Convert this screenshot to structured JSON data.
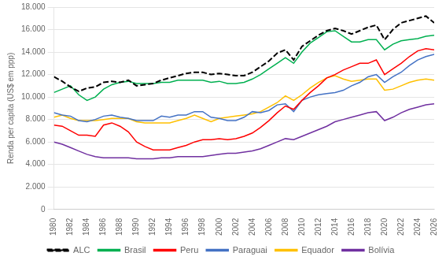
{
  "chart_data": {
    "type": "line",
    "y_label": "Renda per capita (US$ em ppp)",
    "x": [
      1980,
      1981,
      1982,
      1983,
      1984,
      1985,
      1986,
      1987,
      1988,
      1989,
      1990,
      1991,
      1992,
      1993,
      1994,
      1995,
      1996,
      1997,
      1998,
      1999,
      2000,
      2001,
      2002,
      2003,
      2004,
      2005,
      2006,
      2007,
      2008,
      2009,
      2010,
      2011,
      2012,
      2013,
      2014,
      2015,
      2016,
      2017,
      2018,
      2019,
      2020,
      2021,
      2022,
      2023,
      2024,
      2025,
      2026
    ],
    "xlim": [
      1980,
      2026
    ],
    "xticks": [
      1980,
      1982,
      1984,
      1986,
      1988,
      1990,
      1992,
      1994,
      1996,
      1998,
      2000,
      2002,
      2004,
      2006,
      2008,
      2010,
      2012,
      2014,
      2016,
      2018,
      2020,
      2022,
      2024,
      2026
    ],
    "ylim": [
      0,
      18000
    ],
    "yticks": [
      0,
      {
        "value": 2000,
        "label": "2.000"
      },
      {
        "value": 4000,
        "label": "4.000"
      },
      {
        "value": 6000,
        "label": "6.000"
      },
      {
        "value": 8000,
        "label": "8.000"
      },
      {
        "value": 10000,
        "label": "10.000"
      },
      {
        "value": 12000,
        "label": "12.000"
      },
      {
        "value": 14000,
        "label": "14.000"
      },
      {
        "value": 16000,
        "label": "16.000"
      },
      {
        "value": 18000,
        "label": "18.000"
      }
    ],
    "grid": "y",
    "legend": "bottom",
    "series": [
      {
        "name": "ALC",
        "color": "#000000",
        "line_style": "dashed",
        "values": [
          11800,
          11400,
          10900,
          10500,
          10800,
          10900,
          11300,
          11400,
          11300,
          11500,
          11000,
          11100,
          11200,
          11500,
          11700,
          11900,
          12100,
          12200,
          12200,
          12000,
          12100,
          12000,
          11900,
          11900,
          12200,
          12700,
          13200,
          13900,
          14200,
          13300,
          14500,
          15000,
          15500,
          15900,
          16100,
          15900,
          15600,
          15900,
          16200,
          16400,
          15100,
          16000,
          16600,
          16800,
          17000,
          17200,
          16600
        ]
      },
      {
        "name": "Brasil",
        "color": "#00b050",
        "line_style": "solid",
        "values": [
          10400,
          10700,
          11000,
          10200,
          9700,
          10000,
          10700,
          11100,
          11300,
          11400,
          11200,
          11200,
          11200,
          11300,
          11300,
          11500,
          11500,
          11500,
          11500,
          11300,
          11400,
          11200,
          11200,
          11300,
          11600,
          12000,
          12500,
          13000,
          13500,
          13000,
          14000,
          14800,
          15300,
          15800,
          15900,
          15400,
          14900,
          14900,
          15100,
          15100,
          14200,
          14700,
          15000,
          15100,
          15200,
          15400,
          15500
        ]
      },
      {
        "name": "Peru",
        "color": "#ff0000",
        "line_style": "solid",
        "values": [
          7500,
          7400,
          7000,
          6600,
          6600,
          6500,
          7500,
          7700,
          7400,
          6900,
          6000,
          5600,
          5300,
          5300,
          5300,
          5500,
          5700,
          6000,
          6200,
          6200,
          6300,
          6200,
          6300,
          6500,
          6800,
          7300,
          7900,
          8600,
          9200,
          8900,
          9700,
          10400,
          11000,
          11700,
          12000,
          12400,
          12700,
          13000,
          13000,
          13300,
          12000,
          12500,
          13000,
          13600,
          14100,
          14300,
          14200
        ]
      },
      {
        "name": "Paraguai",
        "color": "#4472c4",
        "line_style": "solid",
        "values": [
          8600,
          8400,
          8300,
          7900,
          7800,
          8000,
          8300,
          8400,
          8200,
          8100,
          7900,
          7900,
          7900,
          8300,
          8200,
          8400,
          8400,
          8700,
          8700,
          8200,
          8100,
          7900,
          7900,
          8200,
          8700,
          8600,
          8800,
          9300,
          9400,
          8700,
          9700,
          10000,
          10200,
          10300,
          10400,
          10600,
          11000,
          11300,
          11800,
          12000,
          11300,
          11800,
          12200,
          12800,
          13300,
          13600,
          13800
        ]
      },
      {
        "name": "Equador",
        "color": "#ffc000",
        "line_style": "solid",
        "values": [
          8200,
          8400,
          8100,
          7900,
          7900,
          7900,
          8000,
          8100,
          8100,
          8100,
          7800,
          7700,
          7700,
          7700,
          7700,
          7900,
          8100,
          8400,
          8100,
          7800,
          8100,
          8200,
          8300,
          8400,
          8500,
          8700,
          9100,
          9500,
          10100,
          9700,
          10200,
          10800,
          11300,
          11700,
          11900,
          11600,
          11400,
          11500,
          11600,
          11600,
          10600,
          10700,
          11000,
          11300,
          11500,
          11600,
          11500
        ]
      },
      {
        "name": "Bolívia",
        "color": "#7030a0",
        "line_style": "solid",
        "values": [
          6000,
          5800,
          5500,
          5200,
          4900,
          4700,
          4600,
          4600,
          4600,
          4600,
          4500,
          4500,
          4500,
          4600,
          4600,
          4700,
          4700,
          4700,
          4700,
          4800,
          4900,
          5000,
          5000,
          5100,
          5200,
          5400,
          5700,
          6000,
          6300,
          6200,
          6500,
          6800,
          7100,
          7400,
          7800,
          8000,
          8200,
          8400,
          8600,
          8700,
          7900,
          8200,
          8600,
          8900,
          9100,
          9300,
          9400
        ]
      }
    ]
  }
}
